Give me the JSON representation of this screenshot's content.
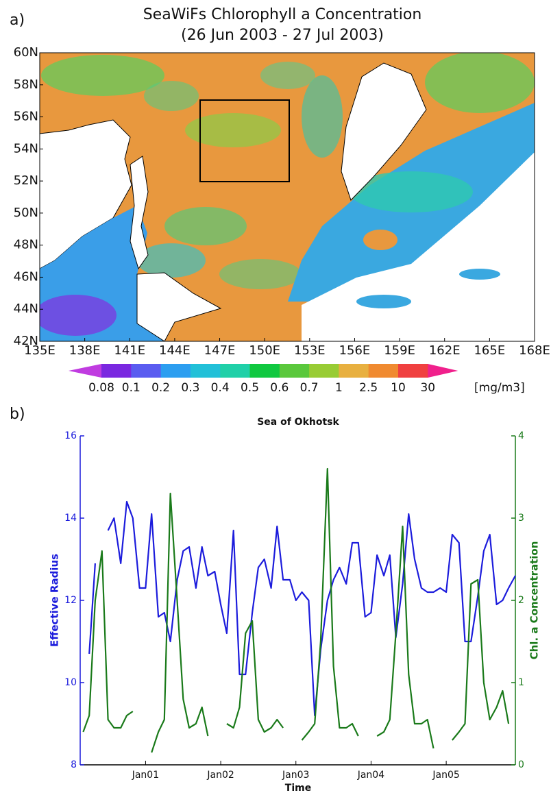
{
  "chart_data": [
    {
      "type": "map",
      "panel_label": "a)",
      "title": "SeaWiFs Chlorophyll a Concentration",
      "subtitle": "(26 Jun 2003 - 27 Jul 2003)",
      "xlim": [
        135,
        168
      ],
      "ylim": [
        42,
        60
      ],
      "xticks": [
        {
          "value": 135,
          "label": "135E"
        },
        {
          "value": 138,
          "label": "138E"
        },
        {
          "value": 141,
          "label": "141E"
        },
        {
          "value": 144,
          "label": "144E"
        },
        {
          "value": 147,
          "label": "147E"
        },
        {
          "value": 150,
          "label": "150E"
        },
        {
          "value": 153,
          "label": "153E"
        },
        {
          "value": 156,
          "label": "156E"
        },
        {
          "value": 159,
          "label": "159E"
        },
        {
          "value": 162,
          "label": "162E"
        },
        {
          "value": 165,
          "label": "165E"
        },
        {
          "value": 168,
          "label": "168E"
        }
      ],
      "yticks": [
        {
          "value": 42,
          "label": "42N"
        },
        {
          "value": 44,
          "label": "44N"
        },
        {
          "value": 46,
          "label": "46N"
        },
        {
          "value": 48,
          "label": "48N"
        },
        {
          "value": 50,
          "label": "50N"
        },
        {
          "value": 52,
          "label": "52N"
        },
        {
          "value": 54,
          "label": "54N"
        },
        {
          "value": 56,
          "label": "56N"
        },
        {
          "value": 58,
          "label": "58N"
        },
        {
          "value": 60,
          "label": "60N"
        }
      ],
      "colorbar": {
        "labels": [
          0.08,
          0.1,
          0.2,
          0.3,
          0.4,
          0.5,
          0.6,
          0.7,
          1,
          2.5,
          10,
          30
        ],
        "colors": [
          "#c03ce0",
          "#7a28e0",
          "#5a5cf0",
          "#2c9ef0",
          "#22c0d8",
          "#20d0a8",
          "#10c840",
          "#5ac83c",
          "#98cc34",
          "#e8b040",
          "#f08a30",
          "#f04040",
          "#f0208c"
        ],
        "unit": "[mg/m3]"
      }
    },
    {
      "type": "line",
      "panel_label": "b)",
      "title": "Sea of Okhotsk",
      "x_label": "Time",
      "y_label": "Effective Radius",
      "y2_label": "Chl. a Concentration",
      "x": [
        2000.17,
        2000.25,
        2000.33,
        2000.42,
        2000.5,
        2000.58,
        2000.67,
        2000.75,
        2000.83,
        2000.92,
        2001.0,
        2001.08,
        2001.17,
        2001.25,
        2001.33,
        2001.42,
        2001.5,
        2001.58,
        2001.67,
        2001.75,
        2001.83,
        2001.92,
        2002.0,
        2002.08,
        2002.17,
        2002.25,
        2002.33,
        2002.42,
        2002.5,
        2002.58,
        2002.67,
        2002.75,
        2002.83,
        2002.92,
        2003.0,
        2003.08,
        2003.17,
        2003.25,
        2003.33,
        2003.42,
        2003.5,
        2003.58,
        2003.67,
        2003.75,
        2003.83,
        2003.92,
        2004.0,
        2004.08,
        2004.17,
        2004.25,
        2004.33,
        2004.42,
        2004.5,
        2004.58,
        2004.67,
        2004.75,
        2004.83,
        2004.92,
        2005.0,
        2005.08,
        2005.17,
        2005.25,
        2005.33,
        2005.42,
        2005.5,
        2005.58,
        2005.67,
        2005.75,
        2005.83,
        2005.92
      ],
      "series": [
        {
          "color": "#1c1cdc",
          "values": [
            null,
            10.7,
            12.9,
            null,
            13.7,
            14.0,
            12.9,
            14.4,
            14.0,
            12.3,
            12.3,
            14.1,
            11.6,
            11.7,
            11.0,
            12.5,
            13.2,
            13.3,
            12.3,
            13.3,
            12.6,
            12.7,
            11.9,
            11.2,
            13.7,
            10.2,
            10.2,
            11.7,
            12.8,
            13.0,
            12.3,
            13.8,
            12.5,
            12.5,
            12.0,
            12.2,
            12.0,
            9.2,
            10.8,
            12.0,
            12.5,
            12.8,
            12.4,
            13.4,
            13.4,
            11.6,
            11.7,
            13.1,
            12.6,
            13.1,
            11.1,
            12.4,
            14.1,
            13.0,
            12.3,
            12.2,
            12.2,
            12.3,
            12.2,
            13.6,
            13.4,
            11.0,
            11.0,
            12.1,
            13.2,
            13.6,
            11.9,
            12.0,
            12.3,
            12.6
          ]
        },
        {
          "color": "#1a7a1a",
          "axis": "y2",
          "values": [
            0.4,
            0.6,
            2.0,
            2.6,
            0.55,
            0.45,
            0.45,
            0.6,
            0.65,
            null,
            null,
            0.15,
            0.4,
            0.55,
            3.3,
            2.0,
            0.8,
            0.45,
            0.5,
            0.7,
            0.35,
            null,
            null,
            0.5,
            0.45,
            0.7,
            1.6,
            1.75,
            0.55,
            0.4,
            0.45,
            0.55,
            0.45,
            null,
            null,
            0.3,
            0.4,
            0.5,
            1.5,
            3.6,
            1.2,
            0.45,
            0.45,
            0.5,
            0.35,
            null,
            null,
            0.35,
            0.4,
            0.55,
            1.6,
            2.9,
            1.1,
            0.5,
            0.5,
            0.55,
            0.2,
            null,
            null,
            0.3,
            0.4,
            0.5,
            2.2,
            2.25,
            1.0,
            0.55,
            0.7,
            0.9,
            0.5,
            null
          ]
        }
      ],
      "xlim": [
        2000.13,
        2005.92
      ],
      "xticks": [
        {
          "value": 2001,
          "label": "Jan01"
        },
        {
          "value": 2002,
          "label": "Jan02"
        },
        {
          "value": 2003,
          "label": "Jan03"
        },
        {
          "value": 2004,
          "label": "Jan04"
        },
        {
          "value": 2005,
          "label": "Jan05"
        }
      ],
      "ylim": [
        8,
        16
      ],
      "yticks": [
        8,
        10,
        12,
        14,
        16
      ],
      "y2lim": [
        0,
        4
      ],
      "y2ticks": [
        0,
        1,
        2,
        3,
        4
      ]
    }
  ]
}
